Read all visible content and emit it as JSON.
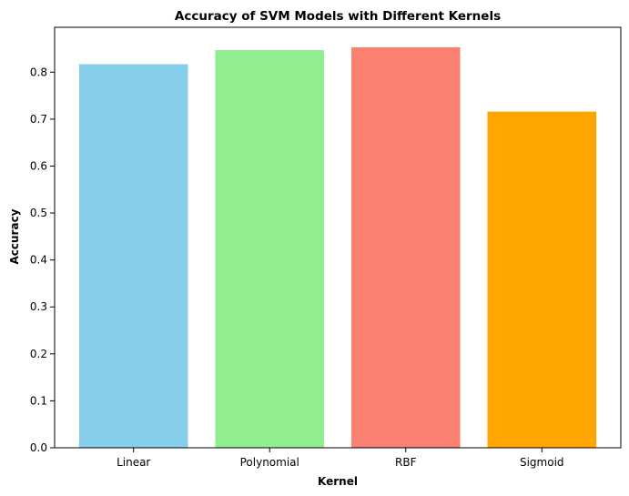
{
  "chart_data": {
    "type": "bar",
    "title": "Accuracy of SVM Models with Different Kernels",
    "xlabel": "Kernel",
    "ylabel": "Accuracy",
    "categories": [
      "Linear",
      "Polynomial",
      "RBF",
      "Sigmoid"
    ],
    "values": [
      0.817,
      0.847,
      0.853,
      0.716
    ],
    "colors": [
      "#87ceeb",
      "#90ee90",
      "#fa8072",
      "#ffa500"
    ],
    "ylim": [
      0,
      0.8956
    ],
    "yticks": [
      0.0,
      0.1,
      0.2,
      0.3,
      0.4,
      0.5,
      0.6,
      0.7,
      0.8
    ],
    "grid": false,
    "legend": "none"
  }
}
